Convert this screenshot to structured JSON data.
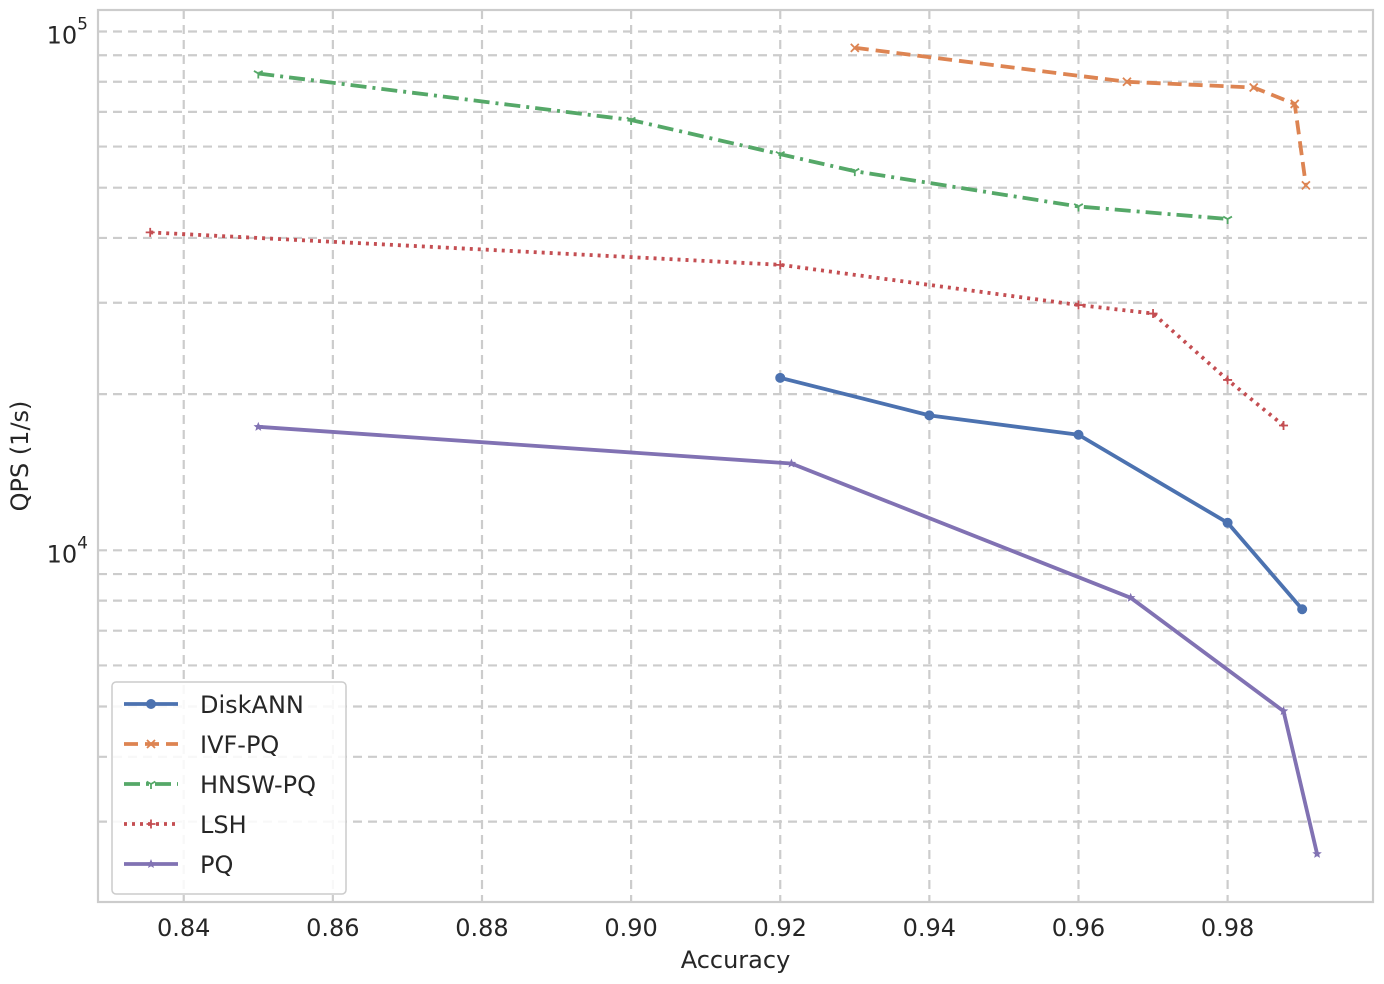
{
  "chart_data": {
    "type": "line",
    "title": "",
    "xlabel": "Accuracy",
    "ylabel": "QPS (1/s)",
    "y_scale": "log",
    "xlim": [
      0.8285,
      0.9995
    ],
    "ylim": [
      2100,
      110000
    ],
    "x_ticks": [
      "0.84",
      "0.86",
      "0.88",
      "0.90",
      "0.92",
      "0.94",
      "0.96",
      "0.98"
    ],
    "x_tick_values": [
      0.84,
      0.86,
      0.88,
      0.9,
      0.92,
      0.94,
      0.96,
      0.98
    ],
    "y_major_ticks": [
      {
        "value": 10000,
        "base": "10",
        "exp": "4"
      },
      {
        "value": 100000,
        "base": "10",
        "exp": "5"
      }
    ],
    "grid": true,
    "legend_position": "lower-left",
    "series": [
      {
        "name": "DiskANN",
        "color": "#4c72b0",
        "linestyle": "solid",
        "marker": "circle",
        "x": [
          0.92,
          0.94,
          0.96,
          0.98,
          0.99
        ],
        "y": [
          21500,
          18200,
          16700,
          11300,
          7700
        ]
      },
      {
        "name": "IVF-PQ",
        "color": "#dd8452",
        "linestyle": "dashed",
        "marker": "x",
        "x": [
          0.93,
          0.9665,
          0.9835,
          0.989,
          0.9905
        ],
        "y": [
          93000,
          80000,
          78000,
          72500,
          50500
        ]
      },
      {
        "name": "HNSW-PQ",
        "color": "#55a868",
        "linestyle": "dashdot",
        "marker": "tri",
        "x": [
          0.85,
          0.9,
          0.92,
          0.93,
          0.96,
          0.98
        ],
        "y": [
          83000,
          67500,
          58000,
          53800,
          46000,
          43500
        ]
      },
      {
        "name": "LSH",
        "color": "#c44e52",
        "linestyle": "dotted",
        "marker": "plus",
        "x": [
          0.8355,
          0.92,
          0.96,
          0.97,
          0.98,
          0.9875
        ],
        "y": [
          41000,
          35500,
          29700,
          28600,
          21300,
          17400
        ]
      },
      {
        "name": "PQ",
        "color": "#8172b3",
        "linestyle": "solid",
        "marker": "star",
        "x": [
          0.85,
          0.9215,
          0.967,
          0.9875,
          0.992
        ],
        "y": [
          17300,
          14700,
          8100,
          4900,
          2600
        ]
      }
    ]
  }
}
